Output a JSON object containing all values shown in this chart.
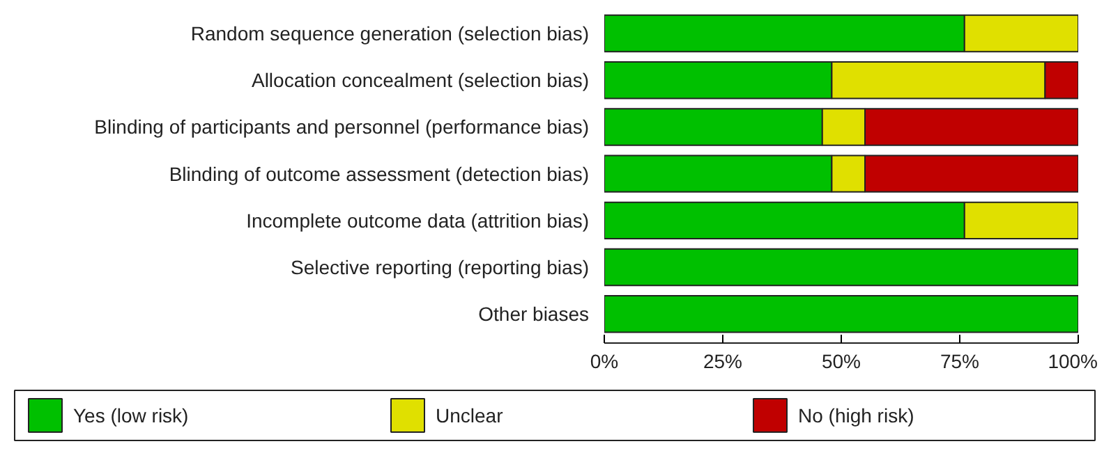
{
  "chart_data": {
    "type": "bar",
    "orientation": "horizontal",
    "stacked": true,
    "categories": [
      "Random sequence generation (selection bias)",
      "Allocation concealment (selection bias)",
      "Blinding of participants and personnel (performance bias)",
      "Blinding of outcome assessment (detection bias)",
      "Incomplete outcome data (attrition bias)",
      "Selective reporting (reporting bias)",
      "Other biases"
    ],
    "series": [
      {
        "name": "Yes (low risk)",
        "color": "#00c000",
        "values": [
          76,
          48,
          46,
          48,
          76,
          100,
          100
        ]
      },
      {
        "name": "Unclear",
        "color": "#e0e000",
        "values": [
          24,
          45,
          9,
          7,
          24,
          0,
          0
        ]
      },
      {
        "name": "No (high risk)",
        "color": "#c00000",
        "values": [
          0,
          7,
          45,
          45,
          0,
          0,
          0
        ]
      }
    ],
    "xlim": [
      0,
      100
    ],
    "xticks": [
      {
        "value": 0,
        "label": "0%"
      },
      {
        "value": 25,
        "label": "25%"
      },
      {
        "value": 50,
        "label": "50%"
      },
      {
        "value": 75,
        "label": "75%"
      },
      {
        "value": 100,
        "label": "100%"
      }
    ],
    "grid": false,
    "legend": "bottom"
  }
}
